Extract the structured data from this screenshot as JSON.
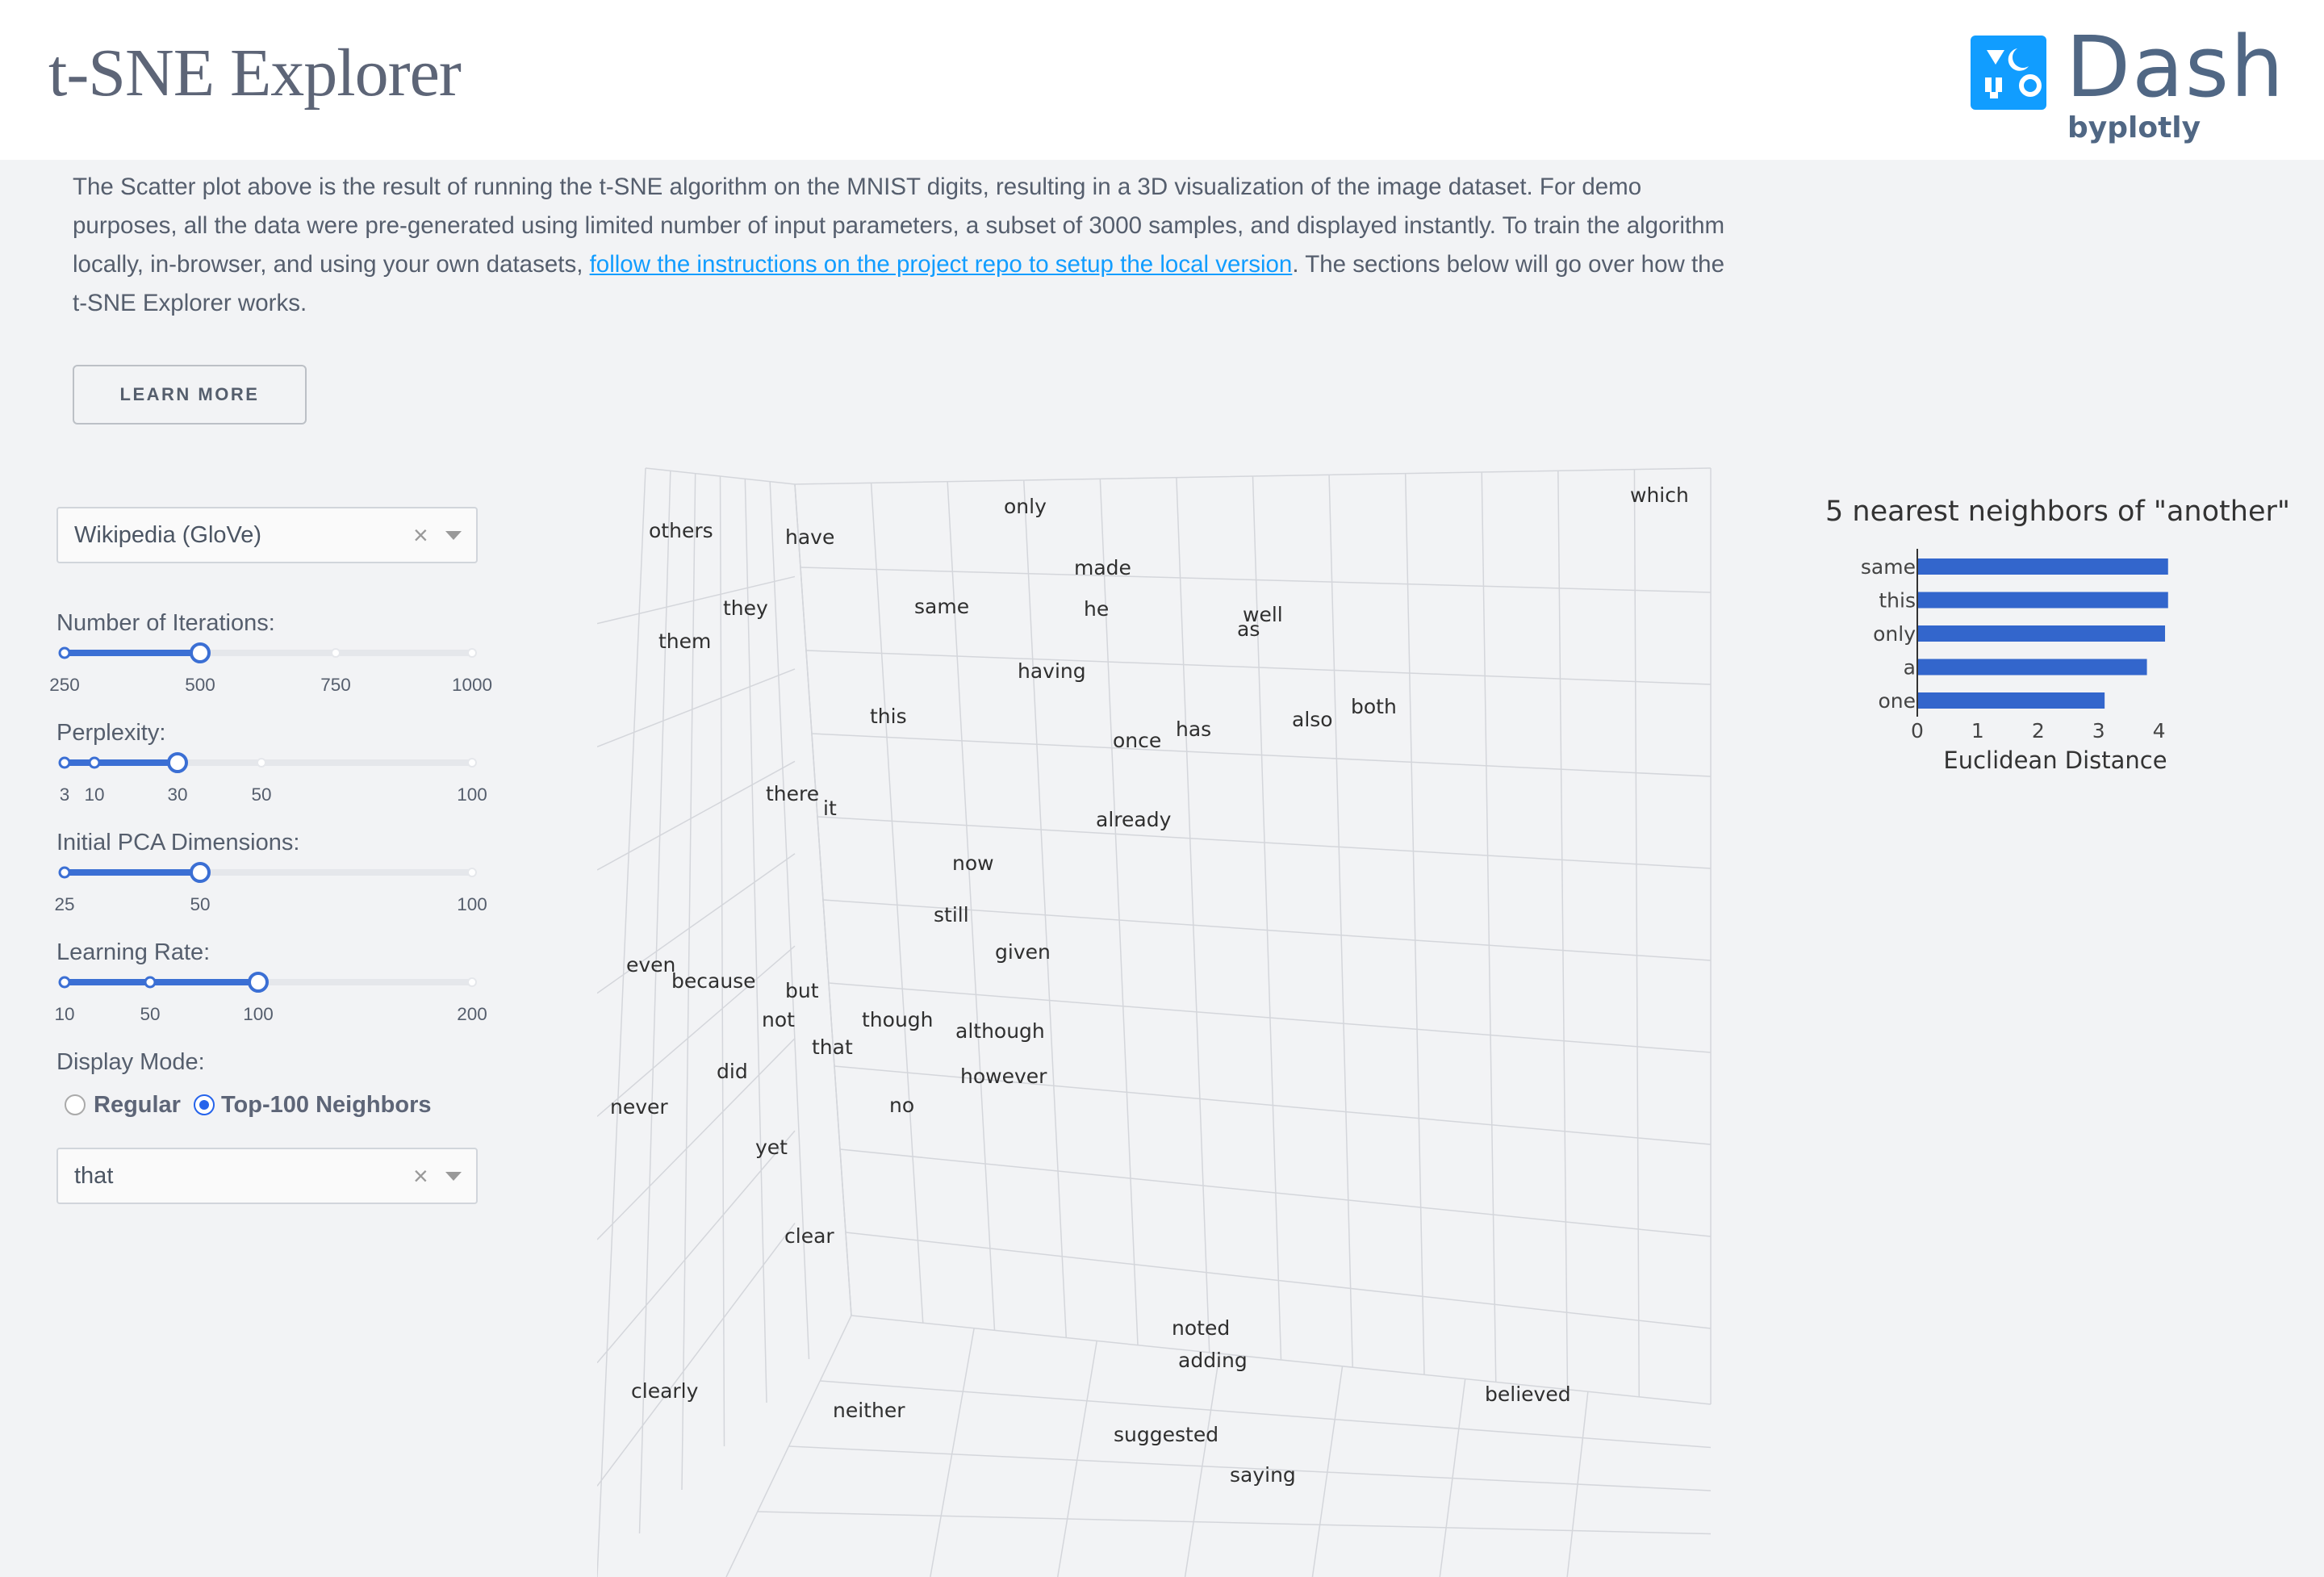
{
  "header": {
    "title": "t-SNE Explorer",
    "logo_word": "Dash",
    "logo_by": "byplotly"
  },
  "description": {
    "text_before": "The Scatter plot above is the result of running the t-SNE algorithm on the MNIST digits, resulting in a 3D visualization of the image dataset. For demo purposes, all the data were pre-generated using limited number of input parameters, a subset of 3000 samples, and displayed instantly. To train the algorithm locally, in-browser, and using your own datasets, ",
    "link_text": "follow the instructions on the project repo to setup the local version",
    "text_after": ". The sections below will go over how the t-SNE Explorer works."
  },
  "learn_more_label": "LEARN MORE",
  "controls": {
    "dataset_dropdown": {
      "value": "Wikipedia (GloVe)",
      "clear": "×"
    },
    "sliders": [
      {
        "label": "Number of Iterations:",
        "min": 250,
        "max": 1000,
        "value": 500,
        "marks": [
          "250",
          "500",
          "750",
          "1000"
        ]
      },
      {
        "label": "Perplexity:",
        "min": 3,
        "max": 100,
        "value": 30,
        "marks": [
          "3",
          "10",
          "30",
          "50",
          "100"
        ]
      },
      {
        "label": "Initial PCA Dimensions:",
        "min": 25,
        "max": 100,
        "value": 50,
        "marks": [
          "25",
          "50",
          "100"
        ]
      },
      {
        "label": "Learning Rate:",
        "min": 10,
        "max": 200,
        "value": 100,
        "marks": [
          "10",
          "50",
          "100",
          "200"
        ]
      }
    ],
    "display_mode": {
      "label": "Display Mode:",
      "options": [
        {
          "label": "Regular",
          "selected": false
        },
        {
          "label": "Top-100 Neighbors",
          "selected": true
        }
      ]
    },
    "word_dropdown": {
      "value": "that",
      "clear": "×"
    }
  },
  "scatter_words": [
    "which",
    "only",
    "others",
    "have",
    "made",
    "they",
    "same",
    "he",
    "well",
    "as",
    "them",
    "having",
    "this",
    "both",
    "also",
    "has",
    "once",
    "there",
    "it",
    "already",
    "now",
    "still",
    "given",
    "even",
    "because",
    "but",
    "not",
    "though",
    "although",
    "that",
    "did",
    "however",
    "never",
    "no",
    "yet",
    "clear",
    "noted",
    "adding",
    "clearly",
    "believed",
    "neither",
    "suggested",
    "saying"
  ],
  "chart_data": {
    "type": "bar",
    "orientation": "horizontal",
    "title": "5 nearest neighbors of \"another\"",
    "xlabel": "Euclidean Distance",
    "ylabel": "",
    "categories": [
      "same",
      "this",
      "only",
      "a",
      "one"
    ],
    "values": [
      4.15,
      4.15,
      4.1,
      3.8,
      3.1
    ],
    "xlim": [
      0,
      4.3
    ],
    "xticks": [
      "0",
      "1",
      "2",
      "3",
      "4"
    ],
    "bar_color": "#3366cc"
  }
}
